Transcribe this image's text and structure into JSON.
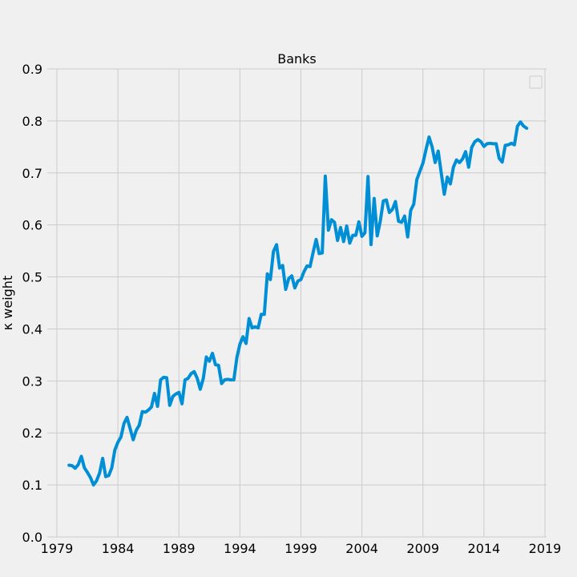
{
  "chart_data": {
    "type": "line",
    "title": "Banks",
    "xlabel": "",
    "ylabel": "κ weight",
    "xlim": [
      1978.8,
      1979.0
    ],
    "ylim": [
      0.0,
      0.9
    ],
    "xticks": [
      1979,
      1984,
      1989,
      1994,
      1999,
      2004,
      2009,
      2014,
      2019
    ],
    "xtick_labels": [
      "1979",
      "1984",
      "1989",
      "1994",
      "1999",
      "2004",
      "2009",
      "2014",
      "2019"
    ],
    "yticks": [
      0.0,
      0.1,
      0.2,
      0.3,
      0.4,
      0.5,
      0.6,
      0.7,
      0.8,
      0.9
    ],
    "ytick_labels": [
      "0.0",
      "0.1",
      "0.2",
      "0.3",
      "0.4",
      "0.5",
      "0.6",
      "0.7",
      "0.8",
      "0.9"
    ],
    "grid": true,
    "legend": "top-right",
    "colors": {
      "line": "#008fd5",
      "background": "#f0f0f0",
      "grid": "#cbcbcb"
    },
    "series": [
      {
        "x": [
          1980.0,
          1980.25,
          1980.5,
          1980.75,
          1981.0,
          1981.25,
          1981.5,
          1981.75,
          1982.0,
          1982.25,
          1982.5,
          1982.75,
          1983.0,
          1983.25,
          1983.5,
          1983.75,
          1984.0,
          1984.25,
          1984.5,
          1984.75,
          1985.0,
          1985.25,
          1985.5,
          1985.75,
          1986.0,
          1986.25,
          1986.5,
          1986.75,
          1987.0,
          1987.25,
          1987.5,
          1987.75,
          1988.0,
          1988.25,
          1988.5,
          1988.75,
          1989.0,
          1989.25,
          1989.5,
          1989.75,
          1990.0,
          1990.25,
          1990.5,
          1990.75,
          1991.0,
          1991.25,
          1991.5,
          1991.75,
          1992.0,
          1992.25,
          1992.5,
          1992.75,
          1993.0,
          1993.25,
          1993.5,
          1993.75,
          1994.0,
          1994.25,
          1994.5,
          1994.75,
          1995.0,
          1995.25,
          1995.5,
          1995.75,
          1996.0,
          1996.25,
          1996.5,
          1996.75,
          1997.0,
          1997.25,
          1997.5,
          1997.75,
          1998.0,
          1998.25,
          1998.5,
          1998.75,
          1999.0,
          1999.25,
          1999.5,
          1999.75,
          2000.0,
          2000.25,
          2000.5,
          2000.75,
          2001.0,
          2001.25,
          2001.5,
          2001.75,
          2002.0,
          2002.25,
          2002.5,
          2002.75,
          2003.0,
          2003.25,
          2003.5,
          2003.75,
          2004.0,
          2004.25,
          2004.5,
          2004.75,
          2005.0,
          2005.25,
          2005.5,
          2005.75,
          2006.0,
          2006.25,
          2006.5,
          2006.75,
          2007.0,
          2007.25,
          2007.5,
          2007.75,
          2008.0,
          2008.25,
          2008.5,
          2008.75,
          2009.0,
          2009.25,
          2009.5,
          2009.75,
          2010.0,
          2010.25,
          2010.5,
          2010.75,
          2011.0,
          2011.25,
          2011.5,
          2011.75,
          2012.0,
          2012.25,
          2012.5,
          2012.75,
          2013.0,
          2013.25,
          2013.5,
          2013.75,
          2014.0,
          2014.25,
          2014.5,
          2014.75,
          2015.0,
          2015.25,
          2015.5,
          2015.75,
          2016.0,
          2016.25,
          2016.5,
          2016.75,
          2017.0,
          2017.25,
          2017.5
        ],
        "values": [
          0.138,
          0.137,
          0.132,
          0.139,
          0.155,
          0.133,
          0.124,
          0.114,
          0.1,
          0.108,
          0.123,
          0.151,
          0.116,
          0.118,
          0.133,
          0.167,
          0.182,
          0.192,
          0.218,
          0.23,
          0.209,
          0.187,
          0.205,
          0.215,
          0.241,
          0.24,
          0.244,
          0.25,
          0.276,
          0.251,
          0.302,
          0.307,
          0.306,
          0.253,
          0.27,
          0.275,
          0.278,
          0.256,
          0.302,
          0.305,
          0.314,
          0.318,
          0.305,
          0.284,
          0.305,
          0.346,
          0.338,
          0.353,
          0.331,
          0.33,
          0.295,
          0.302,
          0.303,
          0.302,
          0.302,
          0.345,
          0.371,
          0.385,
          0.372,
          0.42,
          0.402,
          0.404,
          0.402,
          0.428,
          0.428,
          0.506,
          0.495,
          0.549,
          0.562,
          0.517,
          0.522,
          0.476,
          0.497,
          0.502,
          0.479,
          0.492,
          0.495,
          0.51,
          0.521,
          0.52,
          0.547,
          0.572,
          0.545,
          0.546,
          0.694,
          0.59,
          0.61,
          0.605,
          0.57,
          0.595,
          0.568,
          0.598,
          0.565,
          0.58,
          0.58,
          0.606,
          0.578,
          0.585,
          0.693,
          0.562,
          0.651,
          0.579,
          0.607,
          0.646,
          0.648,
          0.624,
          0.63,
          0.645,
          0.607,
          0.605,
          0.617,
          0.577,
          0.628,
          0.64,
          0.687,
          0.703,
          0.719,
          0.745,
          0.769,
          0.75,
          0.72,
          0.742,
          0.7,
          0.659,
          0.692,
          0.679,
          0.711,
          0.725,
          0.72,
          0.727,
          0.741,
          0.711,
          0.749,
          0.76,
          0.764,
          0.76,
          0.751,
          0.756,
          0.757,
          0.756,
          0.756,
          0.728,
          0.721,
          0.753,
          0.754,
          0.757,
          0.754,
          0.79,
          0.798,
          0.79,
          0.786
        ]
      }
    ]
  }
}
